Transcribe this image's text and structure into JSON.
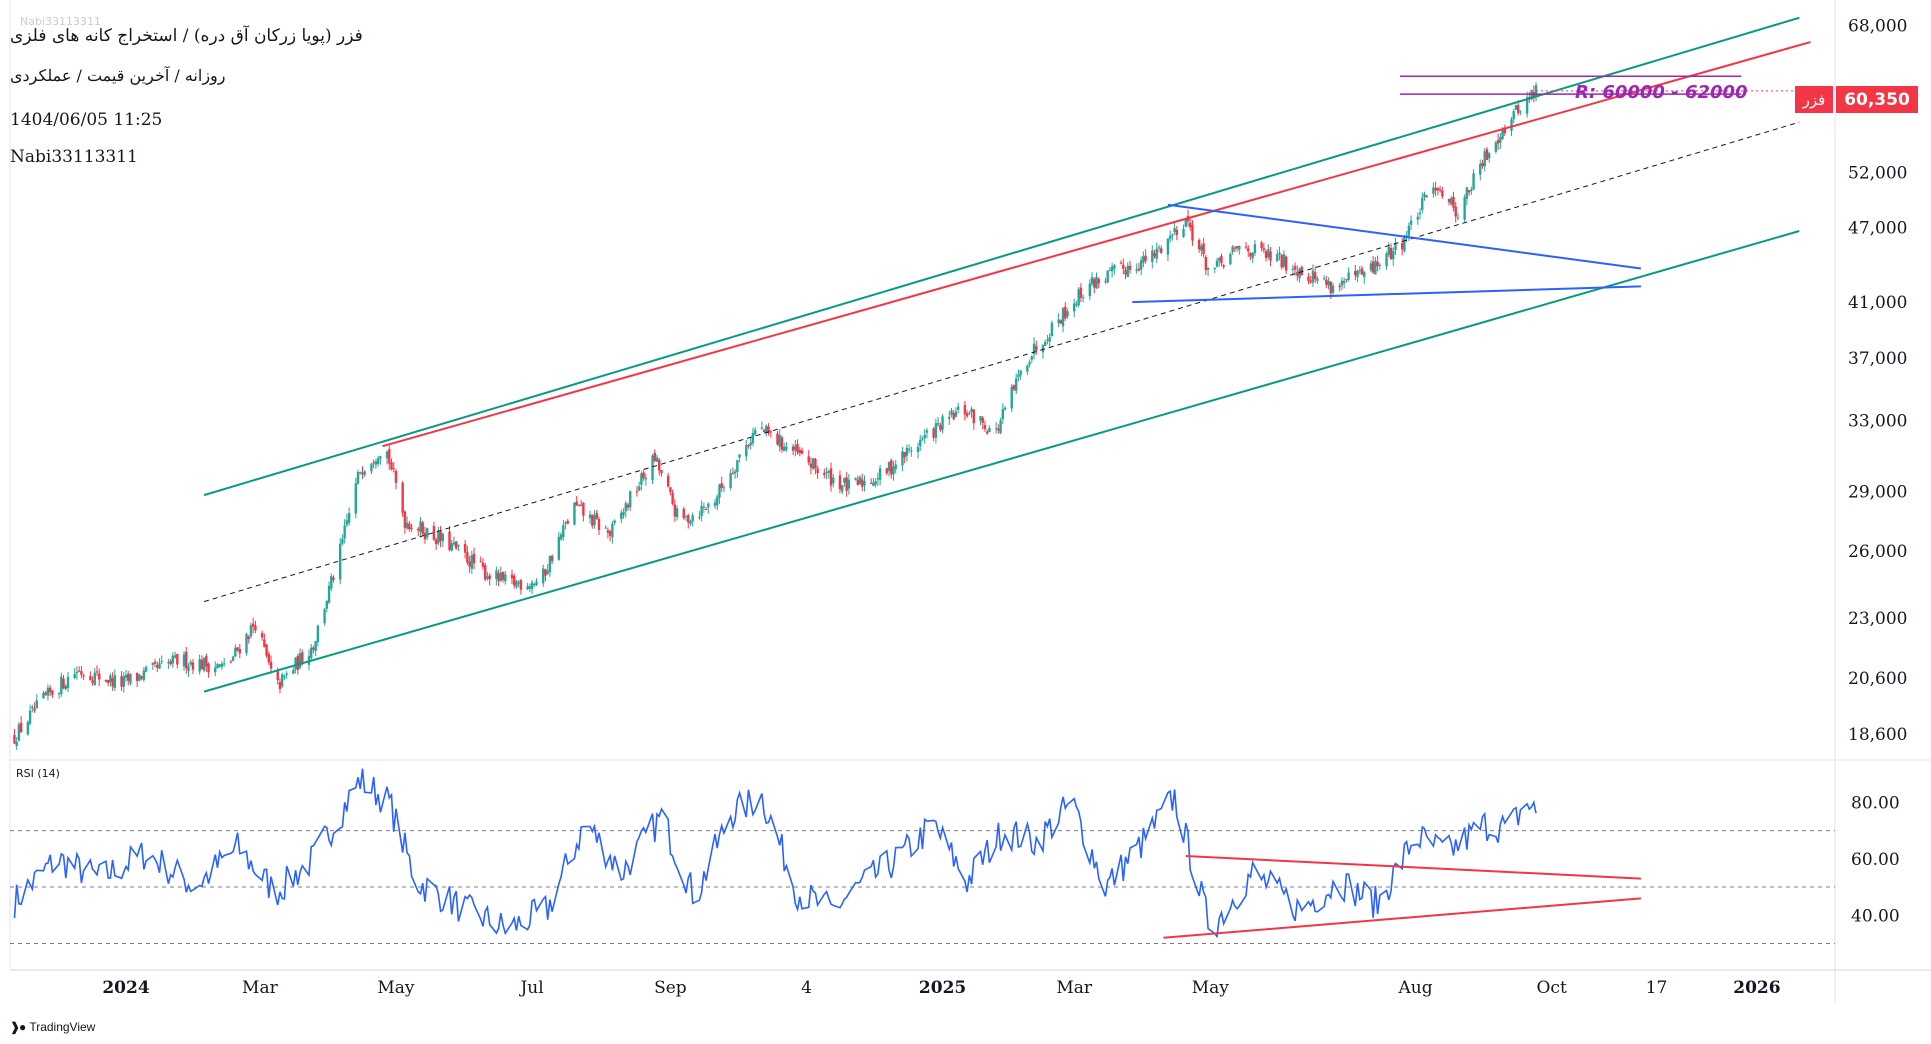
{
  "header": {
    "title": "فزر (پویا زرکان آق دره) / استخراج کانه های فلزی",
    "subtitle": "روزانه / آخرین قیمت / عملکردی",
    "timestamp": "1404/06/05 11:25",
    "author": "Nabi33113311",
    "watermark": "Nabi33113311"
  },
  "price_badge": {
    "symbol": "فزر",
    "value": "60,350",
    "color": "#f23645"
  },
  "annotation": {
    "label": "R: 60000 - 62000",
    "color": "#9c27b0"
  },
  "branding": {
    "logo": "tradingview-logo-icon",
    "text": "TradingView"
  },
  "colors": {
    "up": "#26a69a",
    "down": "#f23645",
    "channel": "#089981",
    "upper_line": "#f23645",
    "triangle": "#2962ff",
    "rsi": "#2962ff",
    "rsi_triangle": "#f23645",
    "resistance": "#9c27b0",
    "midline": "#131722"
  },
  "chart_data": [
    {
      "type": "candlestick",
      "title": "",
      "price_scale": "log",
      "y_ticks": [
        "68,000",
        "52,000",
        "47,000",
        "41,000",
        "37,000",
        "33,000",
        "29,000",
        "26,000",
        "23,000",
        "20,600",
        "18,600"
      ],
      "y_tick_values": [
        68000,
        52000,
        47000,
        41000,
        37000,
        33000,
        29000,
        26000,
        23000,
        20600,
        18600
      ],
      "ylim": [
        17800,
        70500
      ],
      "x_ticks": [
        "2024",
        "Mar",
        "May",
        "Jul",
        "Sep",
        "4",
        "2025",
        "Mar",
        "May",
        "Aug",
        "Oct",
        "17",
        "2026"
      ],
      "x_tick_dates": [
        "2024-01-01",
        "2024-03-01",
        "2024-05-01",
        "2024-07-01",
        "2024-09-01",
        "2024-11-01",
        "2025-01-01",
        "2025-03-01",
        "2025-05-01",
        "2025-08-01",
        "2025-10-01",
        "2025-11-17",
        "2026-01-01"
      ],
      "x_range": [
        "2023-11-10",
        "2026-02-05"
      ],
      "last_price": 60350,
      "anchors": [
        [
          "2023-11-12",
          18500
        ],
        [
          "2023-11-25",
          19800
        ],
        [
          "2023-12-10",
          20900
        ],
        [
          "2023-12-30",
          20400
        ],
        [
          "2024-01-25",
          21300
        ],
        [
          "2024-02-15",
          21000
        ],
        [
          "2024-02-28",
          22800
        ],
        [
          "2024-03-08",
          20200
        ],
        [
          "2024-03-25",
          21900
        ],
        [
          "2024-04-05",
          25500
        ],
        [
          "2024-04-15",
          30200
        ],
        [
          "2024-04-26",
          31600
        ],
        [
          "2024-05-05",
          27500
        ],
        [
          "2024-05-25",
          26300
        ],
        [
          "2024-06-10",
          25000
        ],
        [
          "2024-06-20",
          24500
        ],
        [
          "2024-07-05",
          24600
        ],
        [
          "2024-07-20",
          28200
        ],
        [
          "2024-08-05",
          26800
        ],
        [
          "2024-08-25",
          30800
        ],
        [
          "2024-09-05",
          27400
        ],
        [
          "2024-09-20",
          28400
        ],
        [
          "2024-10-10",
          32600
        ],
        [
          "2024-10-25",
          31300
        ],
        [
          "2024-11-08",
          30000
        ],
        [
          "2024-11-20",
          29200
        ],
        [
          "2024-12-05",
          29900
        ],
        [
          "2024-12-22",
          31800
        ],
        [
          "2025-01-10",
          33700
        ],
        [
          "2025-01-25",
          32300
        ],
        [
          "2025-02-08",
          37000
        ],
        [
          "2025-02-20",
          39400
        ],
        [
          "2025-03-08",
          42400
        ],
        [
          "2025-03-22",
          43500
        ],
        [
          "2025-04-05",
          44500
        ],
        [
          "2025-04-20",
          47800
        ],
        [
          "2025-05-01",
          43200
        ],
        [
          "2025-05-15",
          45400
        ],
        [
          "2025-06-05",
          44000
        ],
        [
          "2025-06-25",
          42200
        ],
        [
          "2025-07-10",
          43200
        ],
        [
          "2025-07-25",
          45500
        ],
        [
          "2025-08-10",
          51000
        ],
        [
          "2025-08-20",
          48300
        ],
        [
          "2025-09-05",
          55000
        ],
        [
          "2025-09-18",
          59000
        ],
        [
          "2025-09-24",
          60350
        ]
      ],
      "annotations": {
        "channel_upper": [
          [
            "2024-02-05",
            28800
          ],
          [
            "2026-01-20",
            69000
          ]
        ],
        "channel_lower": [
          [
            "2024-02-05",
            20100
          ],
          [
            "2026-01-20",
            46700
          ]
        ],
        "channel_mid": [
          [
            "2024-02-05",
            23700
          ],
          [
            "2026-01-20",
            57000
          ]
        ],
        "upper_trend": [
          [
            "2024-04-25",
            31500
          ],
          [
            "2026-01-25",
            66000
          ]
        ],
        "triangle_top": [
          [
            "2025-04-12",
            49000
          ],
          [
            "2025-11-10",
            43600
          ]
        ],
        "triangle_bottom": [
          [
            "2025-03-27",
            41000
          ],
          [
            "2025-11-10",
            42200
          ]
        ],
        "resistance_zone": {
          "range": [
            60000,
            62000
          ],
          "x": [
            "2025-07-25",
            "2025-12-25"
          ]
        }
      }
    },
    {
      "type": "line",
      "title": "RSI (14)",
      "y_ticks": [
        "80.00",
        "60.00",
        "40.00"
      ],
      "y_tick_values": [
        80,
        60,
        40
      ],
      "ylim": [
        22,
        94
      ],
      "levels": [
        70,
        50,
        30
      ],
      "anchors": [
        [
          "2023-11-12",
          45
        ],
        [
          "2023-12-01",
          60
        ],
        [
          "2023-12-20",
          53
        ],
        [
          "2024-01-10",
          62
        ],
        [
          "2024-02-01",
          50
        ],
        [
          "2024-02-20",
          64
        ],
        [
          "2024-03-08",
          48
        ],
        [
          "2024-03-25",
          60
        ],
        [
          "2024-04-15",
          88
        ],
        [
          "2024-04-28",
          80
        ],
        [
          "2024-05-10",
          52
        ],
        [
          "2024-06-01",
          42
        ],
        [
          "2024-06-20",
          35
        ],
        [
          "2024-07-08",
          42
        ],
        [
          "2024-07-25",
          73
        ],
        [
          "2024-08-10",
          55
        ],
        [
          "2024-08-28",
          75
        ],
        [
          "2024-09-12",
          46
        ],
        [
          "2024-09-28",
          76
        ],
        [
          "2024-10-12",
          82
        ],
        [
          "2024-10-28",
          48
        ],
        [
          "2024-11-12",
          42
        ],
        [
          "2024-11-28",
          52
        ],
        [
          "2024-12-12",
          60
        ],
        [
          "2024-12-28",
          72
        ],
        [
          "2025-01-12",
          52
        ],
        [
          "2025-01-28",
          70
        ],
        [
          "2025-02-12",
          66
        ],
        [
          "2025-02-28",
          80
        ],
        [
          "2025-03-15",
          50
        ],
        [
          "2025-04-01",
          66
        ],
        [
          "2025-04-15",
          82
        ],
        [
          "2025-05-01",
          35
        ],
        [
          "2025-05-20",
          55
        ],
        [
          "2025-06-10",
          42
        ],
        [
          "2025-06-28",
          52
        ],
        [
          "2025-07-15",
          44
        ],
        [
          "2025-08-01",
          68
        ],
        [
          "2025-08-15",
          62
        ],
        [
          "2025-09-01",
          72
        ],
        [
          "2025-09-12",
          71
        ],
        [
          "2025-09-20",
          80
        ],
        [
          "2025-09-24",
          76
        ]
      ],
      "annotations": {
        "rsi_triangle_top": [
          [
            "2025-04-20",
            61
          ],
          [
            "2025-11-10",
            53
          ]
        ],
        "rsi_triangle_bottom": [
          [
            "2025-04-10",
            32
          ],
          [
            "2025-11-10",
            46
          ]
        ]
      }
    }
  ]
}
